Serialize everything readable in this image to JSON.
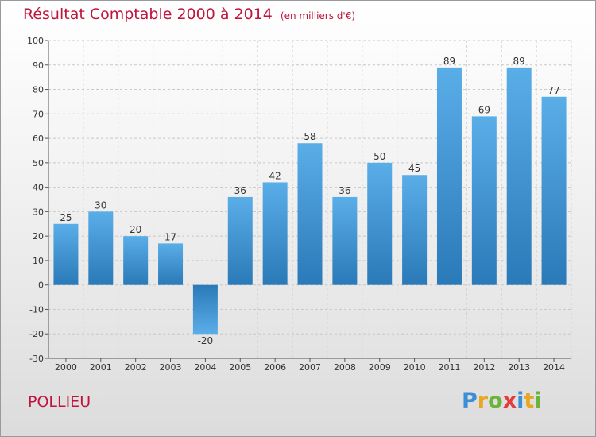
{
  "title": "Résultat Comptable 2000 à 2014",
  "subtitle": "(en milliers d'€)",
  "commune": "POLLIEU",
  "logo": {
    "letters": [
      "P",
      "r",
      "o",
      "x",
      "i",
      "t",
      "i"
    ]
  },
  "colors": {
    "bar_top": "#5aaee8",
    "bar_bottom": "#2a79b8",
    "title": "#c0143c"
  },
  "chart_data": {
    "type": "bar",
    "categories": [
      "2000",
      "2001",
      "2002",
      "2003",
      "2004",
      "2005",
      "2006",
      "2007",
      "2008",
      "2009",
      "2010",
      "2011",
      "2012",
      "2013",
      "2014"
    ],
    "values": [
      25,
      30,
      20,
      17,
      -20,
      36,
      42,
      58,
      36,
      50,
      45,
      89,
      69,
      89,
      77
    ],
    "ylim": [
      -30,
      100
    ],
    "yticks": [
      -30,
      -20,
      -10,
      0,
      10,
      20,
      30,
      40,
      50,
      60,
      70,
      80,
      90,
      100
    ],
    "grid": true,
    "legend": "none"
  }
}
